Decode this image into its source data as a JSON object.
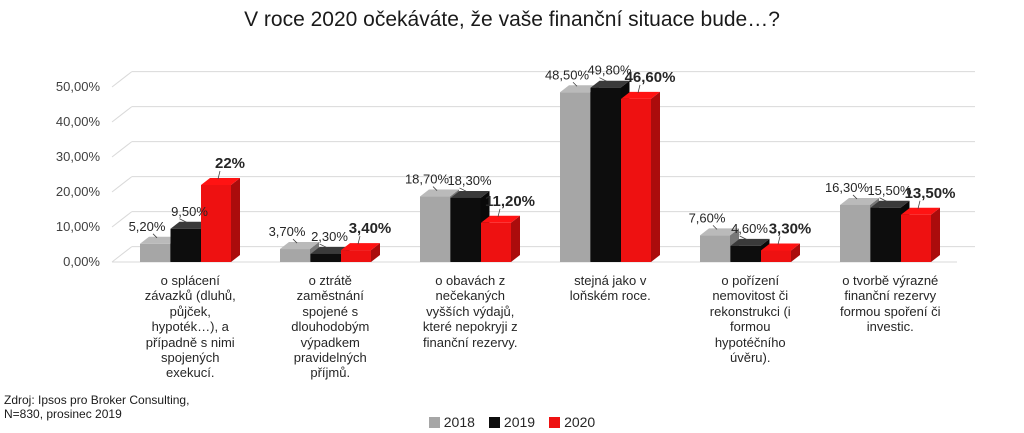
{
  "chart_data": {
    "type": "bar",
    "title": "V roce 2020 očekáváte, že vaše finanční situace bude…?",
    "categories": [
      "o splácení závazků (dluhů, půjček, hypoték…), a případně s nimi spojených exekucí.",
      "o ztrátě zaměstnání spojené s dlouhodobým výpadkem pravidelných příjmů.",
      "o obavách z nečekaných vyšších výdajů, které nepokryji z finanční rezervy.",
      "stejná jako v loňském roce.",
      "o pořízení nemovitost či rekonstrukci (i formou hypotéčního úvěru).",
      "o tvorbě výrazné finanční rezervy formou spoření či investic."
    ],
    "category_lines": [
      [
        "o splácení",
        "závazků (dluhů,",
        "půjček,",
        "hypoték…), a",
        "případně s nimi",
        "spojených",
        "exekucí."
      ],
      [
        "o ztrátě",
        "zaměstnání",
        "spojené s",
        "dlouhodobým",
        "výpadkem",
        "pravidelných",
        "příjmů."
      ],
      [
        "o obavách z",
        "nečekaných",
        "vyšších výdajů,",
        "které nepokryji z",
        "finanční rezervy."
      ],
      [
        "stejná jako v",
        "loňském roce."
      ],
      [
        "o pořízení",
        "nemovitost či",
        "rekonstrukci (i",
        "formou",
        "hypotéčního",
        "úvěru)."
      ],
      [
        "o tvorbě výrazné",
        "finanční rezervy",
        "formou spoření či",
        "investic."
      ]
    ],
    "series": [
      {
        "name": "2018",
        "color": "#a6a6a6",
        "values": [
          5.2,
          3.7,
          18.7,
          48.5,
          7.6,
          16.3
        ],
        "labels": [
          "5,20%",
          "3,70%",
          "18,70%",
          "48,50%",
          "7,60%",
          "16,30%"
        ]
      },
      {
        "name": "2019",
        "color": "#0d0d0d",
        "values": [
          9.5,
          2.3,
          18.3,
          49.8,
          4.6,
          15.5
        ],
        "labels": [
          "9,50%",
          "2,30%",
          "18,30%",
          "49,80%",
          "4,60%",
          "15,50%"
        ]
      },
      {
        "name": "2020",
        "color": "#ee1111",
        "values": [
          22,
          3.4,
          11.2,
          46.6,
          3.3,
          13.5
        ],
        "labels": [
          "22%",
          "3,40%",
          "11,20%",
          "46,60%",
          "3,30%",
          "13,50%"
        ]
      }
    ],
    "y_ticks": [
      "0,00%",
      "10,00%",
      "20,00%",
      "30,00%",
      "40,00%",
      "50,00%"
    ],
    "ylim": [
      0,
      50
    ],
    "grid": true,
    "legend_position": "bottom"
  },
  "source_note": [
    "Zdroj: Ipsos pro Broker Consulting,",
    "N=830, prosinec 2019"
  ]
}
